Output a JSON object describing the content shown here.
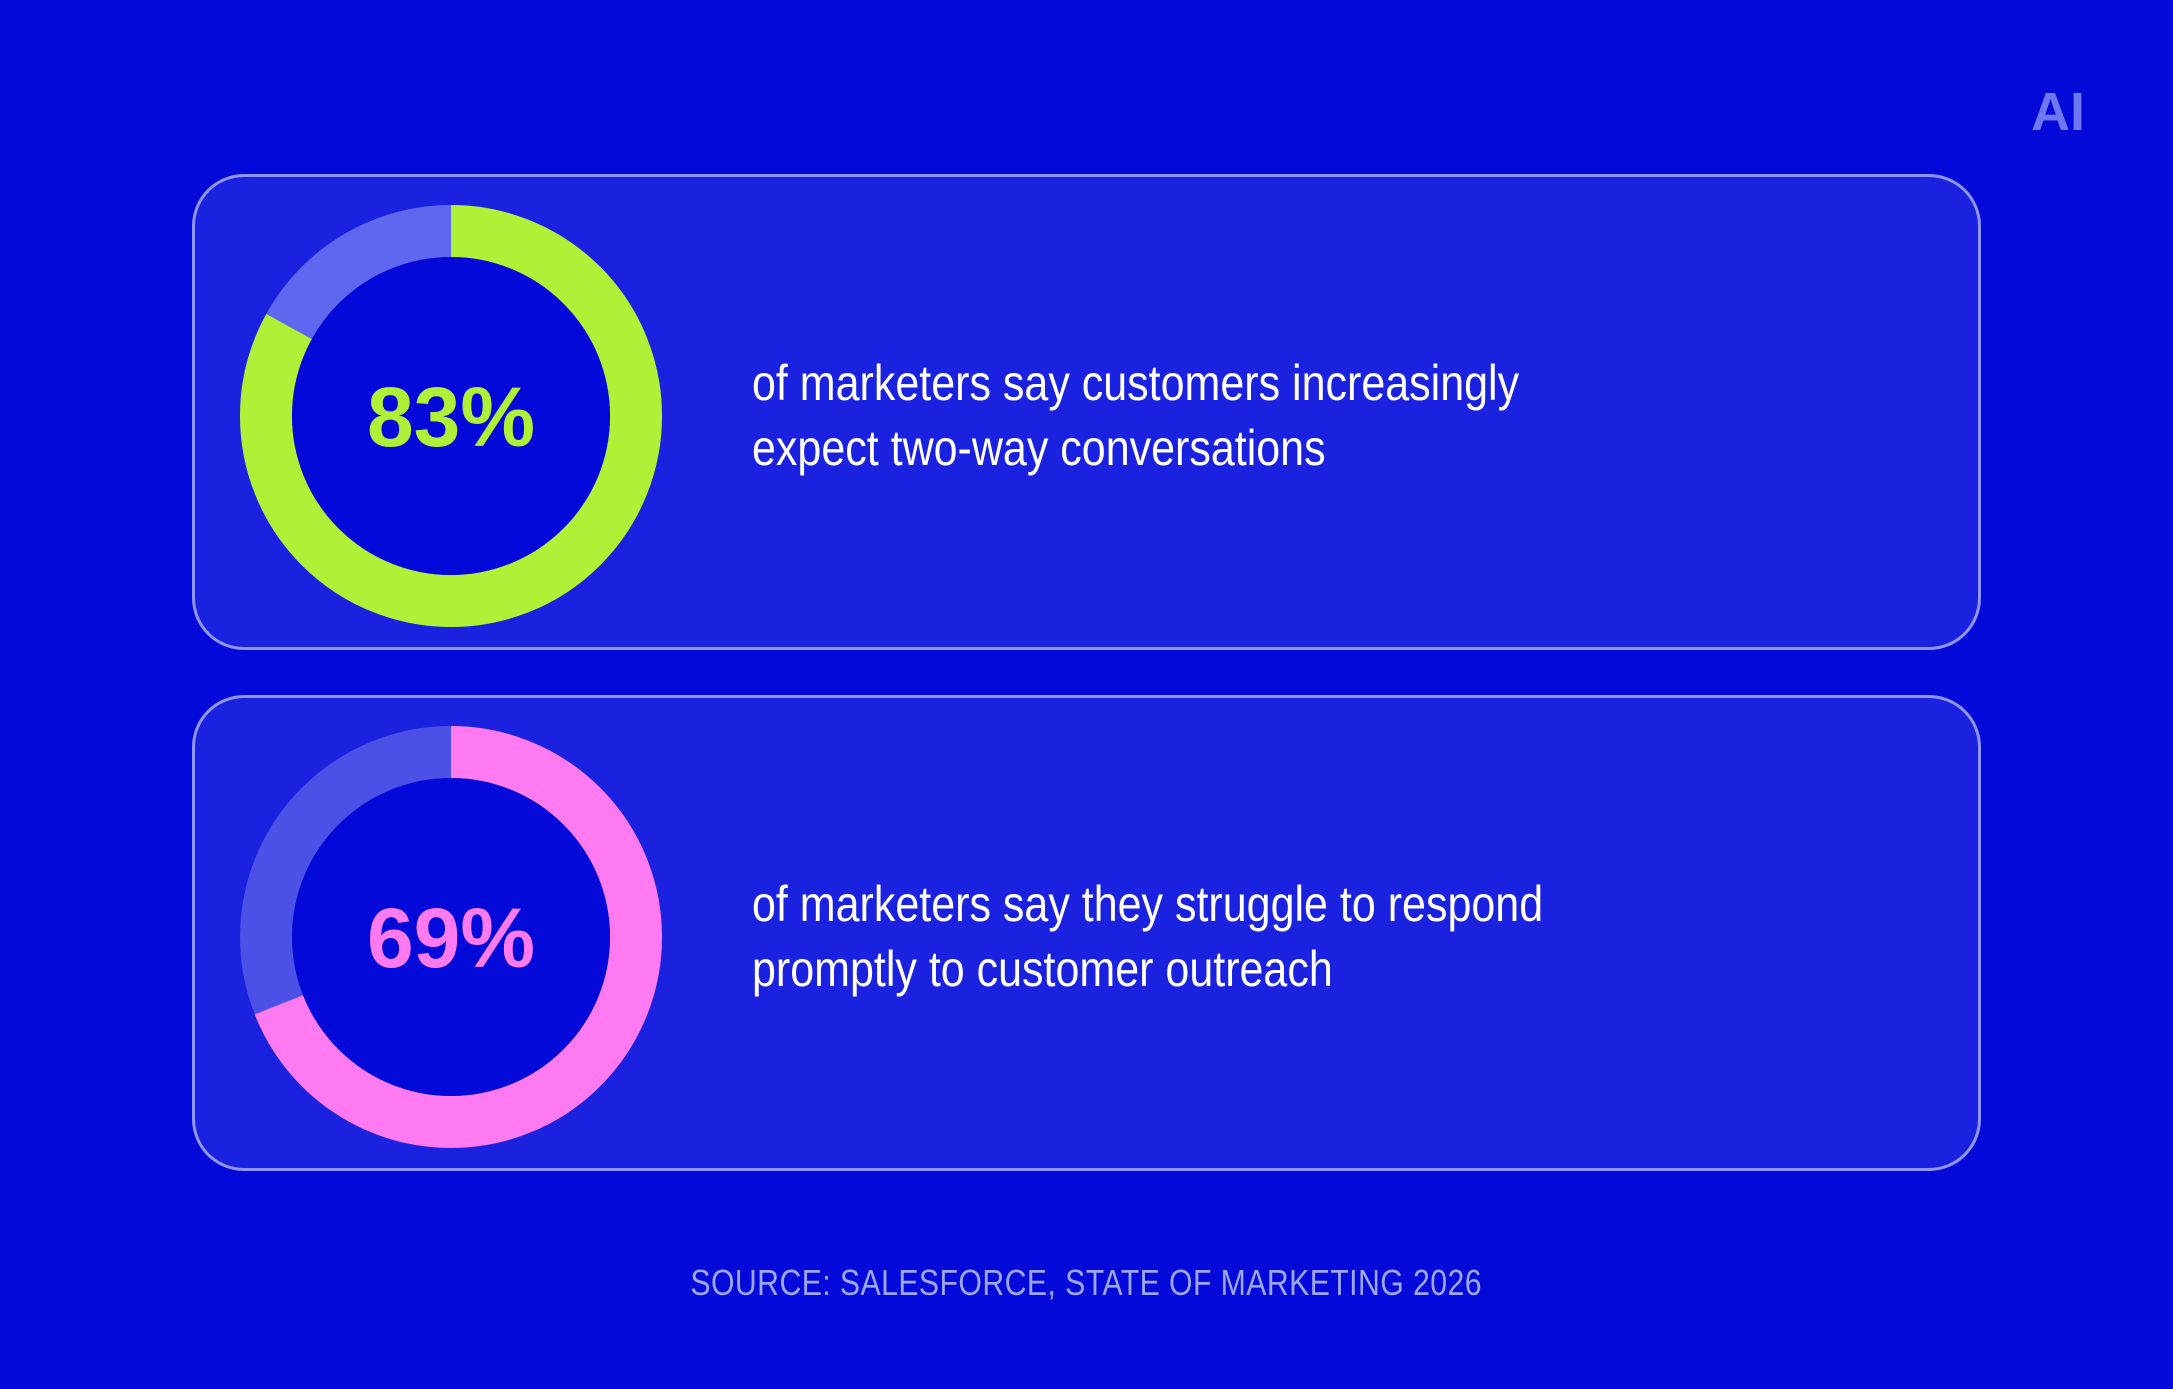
{
  "logo": {
    "text": "AI",
    "color": "#6F78F4"
  },
  "colors": {
    "background": "#0309D9",
    "card": "#1A22DF",
    "inner": "#0309D9",
    "track": "#5F66F0",
    "green": "#AEF137",
    "pink": "#FF7AF0"
  },
  "stats": [
    {
      "percent": 83,
      "label": "83%",
      "color": "#AEF137",
      "text": "of marketers say customers increasingly\nexpect two-way conversations"
    },
    {
      "percent": 69,
      "label": "69%",
      "color": "#FF7AF0",
      "text": "of marketers say they struggle to respond\npromptly to customer outreach"
    }
  ],
  "chart_data": [
    {
      "type": "pie",
      "values": [
        83,
        17
      ],
      "categories": [
        "83%",
        ""
      ]
    },
    {
      "type": "pie",
      "values": [
        69,
        31
      ],
      "categories": [
        "69%",
        ""
      ]
    }
  ],
  "source": "SOURCE: SALESFORCE, STATE OF MARKETING 2026"
}
